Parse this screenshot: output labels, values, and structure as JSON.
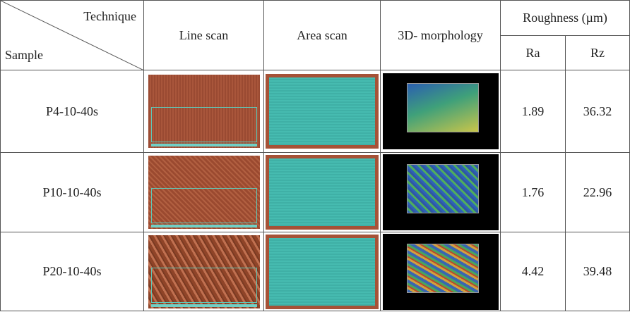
{
  "header": {
    "technique": "Technique",
    "sample": "Sample",
    "columns": [
      "Line scan",
      "Area scan",
      "3D- morphology"
    ],
    "roughness": "Roughness (µm)",
    "roughness_columns": [
      "Ra",
      "Rz"
    ]
  },
  "rows": [
    {
      "sample": "P4-10-40s",
      "ra": "1.89",
      "rz": "36.32"
    },
    {
      "sample": "P10-10-40s",
      "ra": "1.76",
      "rz": "22.96"
    },
    {
      "sample": "P20-10-40s",
      "ra": "4.42",
      "rz": "39.48"
    }
  ]
}
